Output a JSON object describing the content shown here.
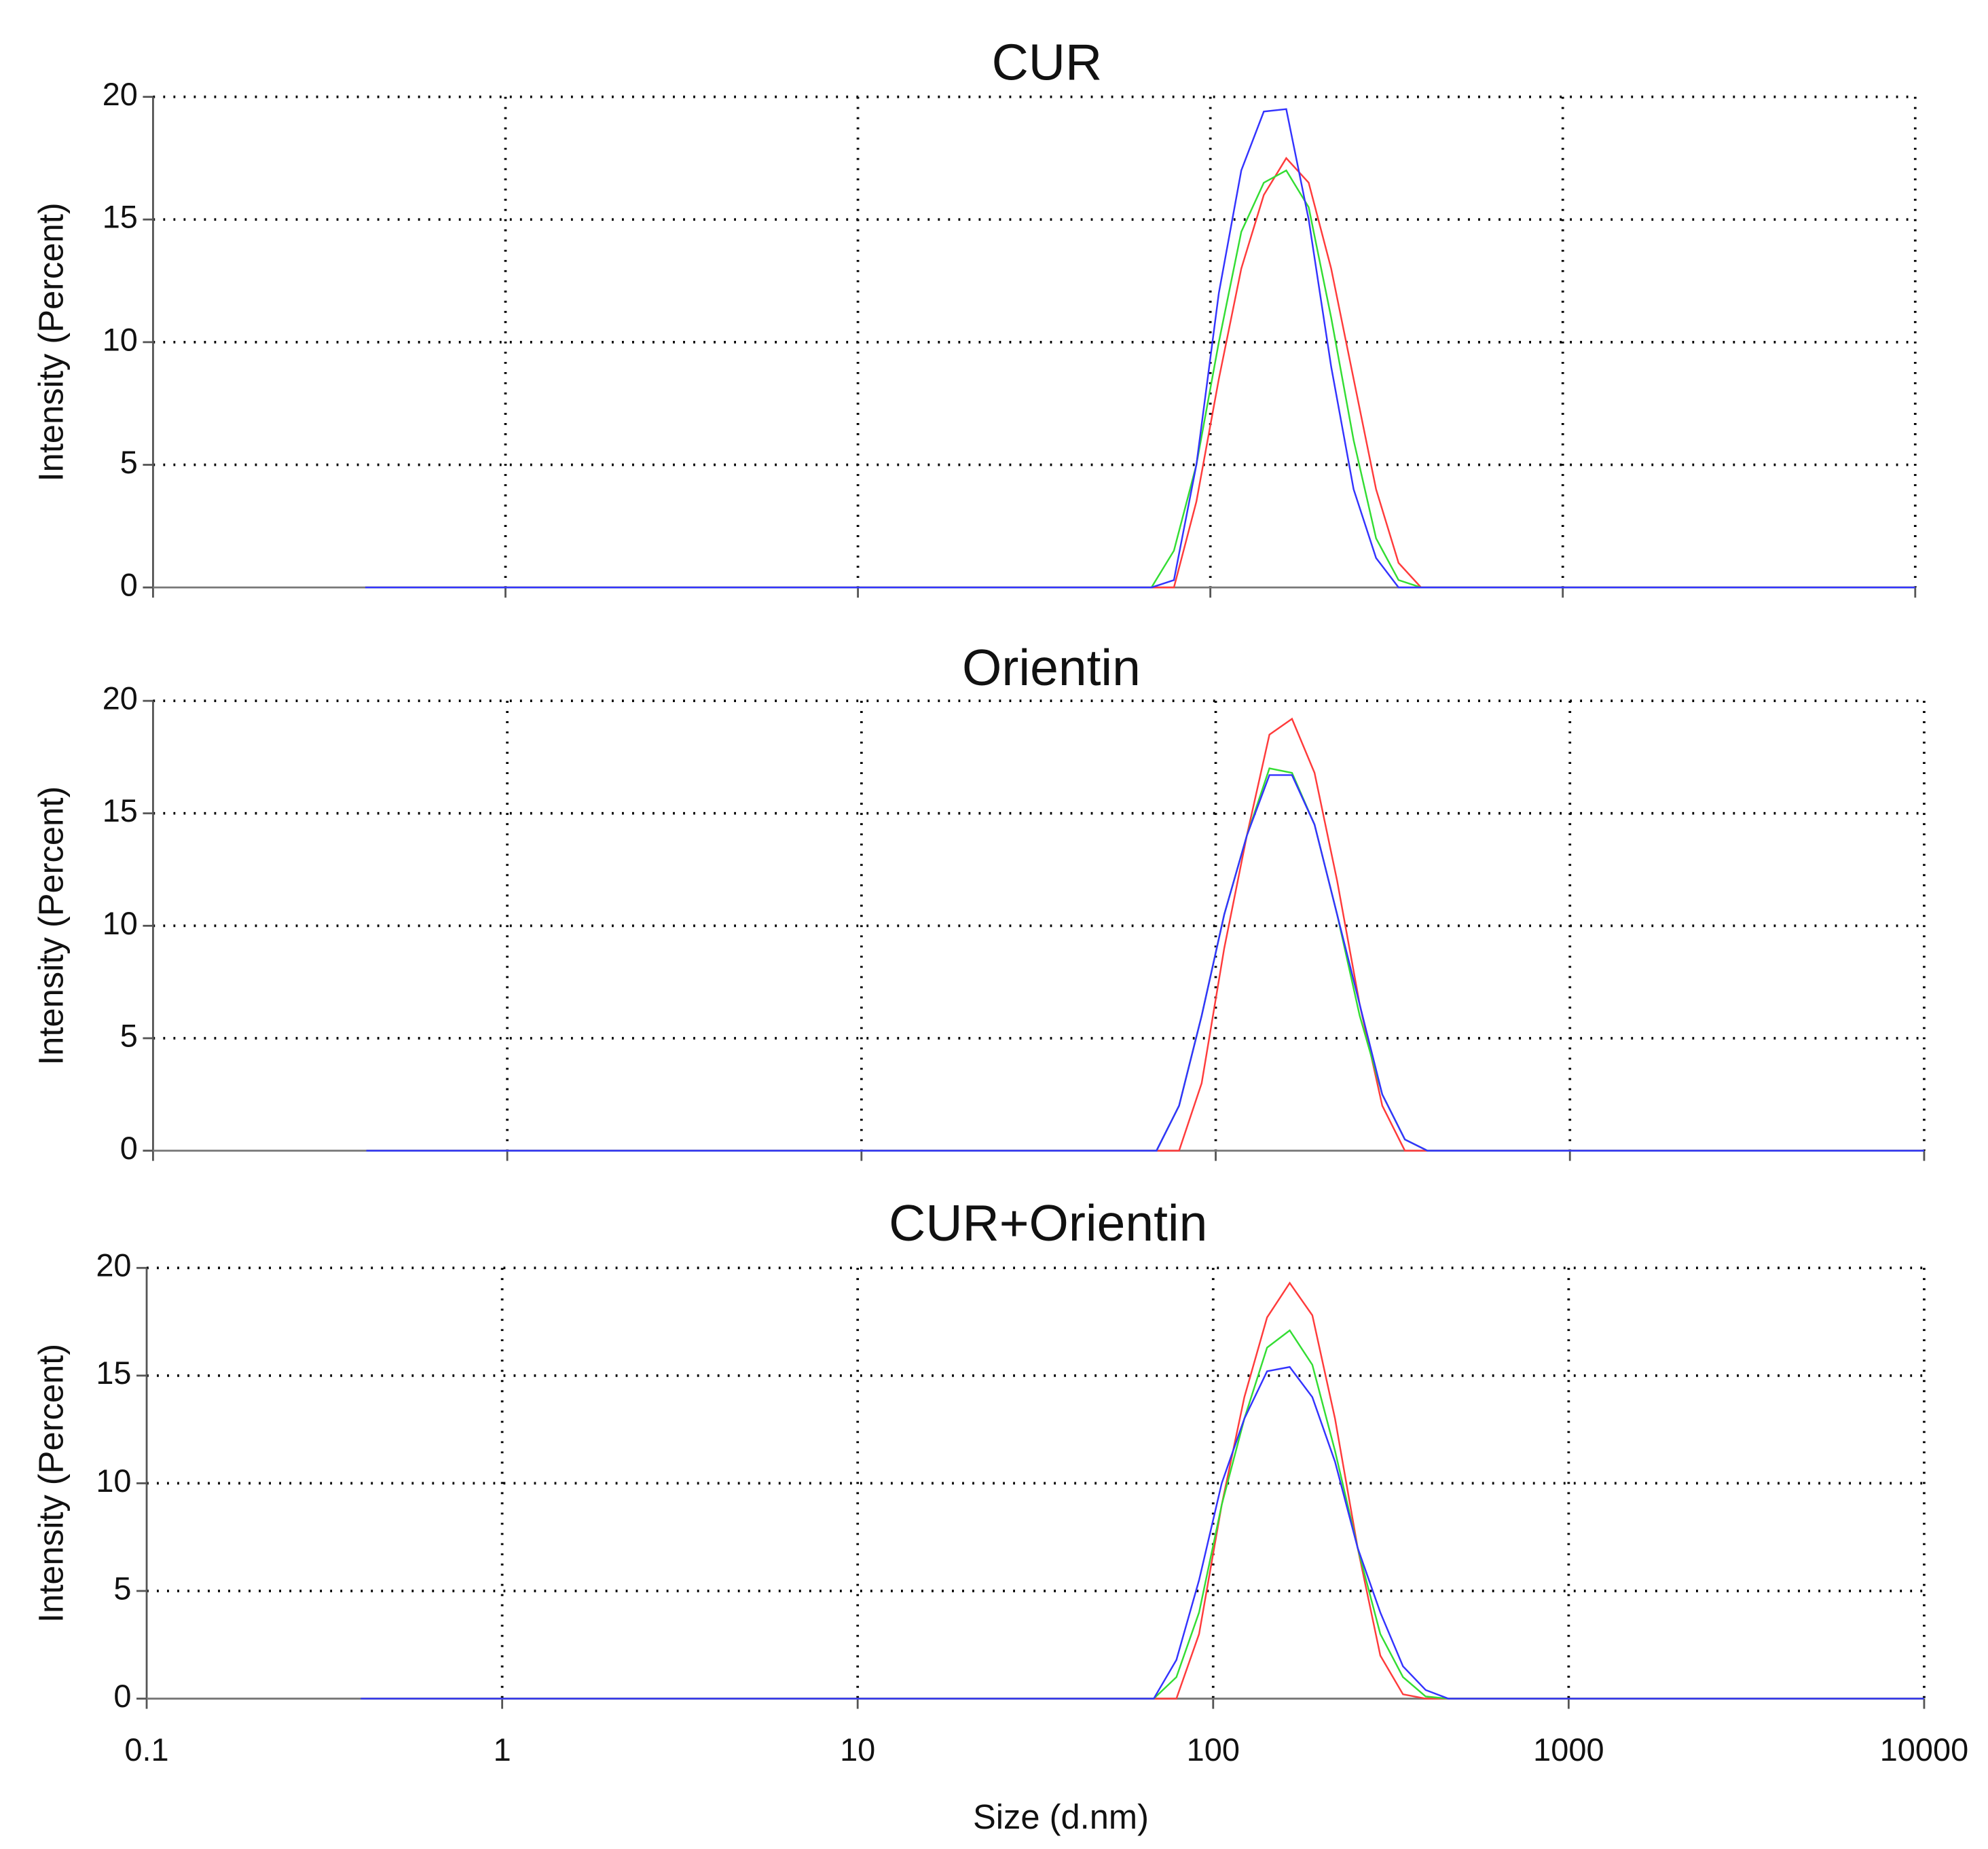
{
  "chart_data": [
    {
      "type": "line",
      "title": "CUR",
      "ylabel": "Intensity (Percent)",
      "xscale": "log",
      "grid": true,
      "xlim": [
        0.1,
        10000
      ],
      "xticks": [
        0.1,
        1,
        10,
        100,
        1000,
        10000
      ],
      "ylim": [
        0,
        20
      ],
      "yticks": [
        0,
        5,
        10,
        15,
        20
      ],
      "x": [
        0.4,
        68.06,
        78.82,
        91.28,
        105.7,
        122.4,
        141.8,
        164.2,
        190.1,
        220.2,
        255,
        295.3,
        342,
        396.1,
        458.7,
        10000
      ],
      "series": [
        {
          "color": "#ff3b3b",
          "values": [
            0,
            0,
            0,
            3.5,
            8.5,
            13,
            16,
            17.5,
            16.5,
            13,
            8.5,
            4,
            1,
            0,
            0,
            0
          ]
        },
        {
          "color": "#33dd33",
          "values": [
            0,
            0,
            1.5,
            5,
            10,
            14.5,
            16.5,
            17,
            15.5,
            11,
            6,
            2,
            0.3,
            0,
            0,
            0
          ]
        },
        {
          "color": "#3333ff",
          "values": [
            0,
            0,
            0.3,
            5,
            12,
            17,
            19.4,
            19.5,
            15,
            9,
            4,
            1.2,
            0,
            0,
            0,
            0
          ]
        }
      ]
    },
    {
      "type": "line",
      "title": "Orientin",
      "ylabel": "Intensity (Percent)",
      "xscale": "log",
      "grid": true,
      "xlim": [
        0.1,
        10000
      ],
      "xticks": [
        0.1,
        1,
        10,
        100,
        1000,
        10000
      ],
      "ylim": [
        0,
        20
      ],
      "yticks": [
        0,
        5,
        10,
        15,
        20
      ],
      "x": [
        0.4,
        68.06,
        78.82,
        91.28,
        105.7,
        122.4,
        141.8,
        164.2,
        190.1,
        220.2,
        255,
        295.3,
        342,
        396.1,
        458.7,
        10000
      ],
      "series": [
        {
          "color": "#ff3b3b",
          "values": [
            0,
            0,
            0,
            3,
            9,
            14,
            18.5,
            19.2,
            16.8,
            12,
            6.5,
            2,
            0,
            0,
            0,
            0
          ]
        },
        {
          "color": "#33dd33",
          "values": [
            0,
            0,
            2,
            6,
            10.5,
            14,
            17,
            16.8,
            14.5,
            10.5,
            6,
            2.5,
            0.5,
            0,
            0,
            0
          ]
        },
        {
          "color": "#3333ff",
          "values": [
            0,
            0,
            2,
            6,
            10.5,
            14,
            16.7,
            16.7,
            14.5,
            10.5,
            6.5,
            2.5,
            0.5,
            0,
            0,
            0
          ]
        }
      ]
    },
    {
      "type": "line",
      "title": "CUR+Orientin",
      "ylabel": "Intensity (Percent)",
      "xlabel": "Size (d.nm)",
      "xscale": "log",
      "grid": true,
      "xlim": [
        0.1,
        10000
      ],
      "xticks": [
        0.1,
        1,
        10,
        100,
        1000,
        10000
      ],
      "ylim": [
        0,
        20
      ],
      "yticks": [
        0,
        5,
        10,
        15,
        20
      ],
      "x": [
        0.4,
        68.06,
        78.82,
        91.28,
        105.7,
        122.4,
        141.8,
        164.2,
        190.1,
        220.2,
        255,
        295.3,
        342,
        396.1,
        458.7,
        10000
      ],
      "series": [
        {
          "color": "#ff3b3b",
          "values": [
            0,
            0,
            0,
            3,
            9,
            14,
            17.7,
            19.3,
            17.8,
            13,
            7,
            2,
            0.2,
            0,
            0,
            0
          ]
        },
        {
          "color": "#33dd33",
          "values": [
            0,
            0,
            1,
            4,
            9,
            13,
            16.3,
            17.1,
            15.5,
            11.5,
            7,
            3,
            1,
            0.1,
            0,
            0
          ]
        },
        {
          "color": "#3333ff",
          "values": [
            0,
            0,
            1.8,
            5.5,
            10,
            13,
            15.2,
            15.4,
            14,
            11,
            7,
            4,
            1.5,
            0.4,
            0,
            0
          ]
        }
      ]
    }
  ]
}
